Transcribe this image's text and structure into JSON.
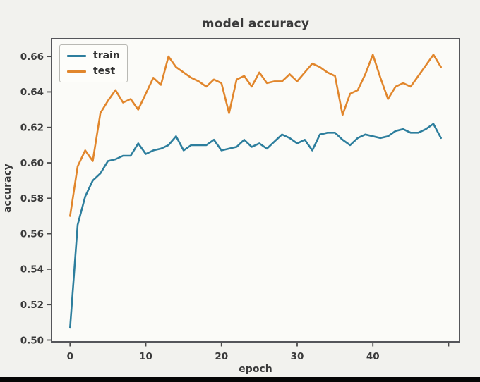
{
  "figure": {
    "title": "model accuracy",
    "x_axis_label": "epoch",
    "y_axis_label": "accuracy"
  },
  "chart_data": {
    "type": "line",
    "title": "model accuracy",
    "xlabel": "epoch",
    "ylabel": "accuracy",
    "grid": false,
    "legend_position": "upper left",
    "xlim": [
      -2.45,
      51.45
    ],
    "ylim": [
      0.499,
      0.67
    ],
    "xticks": [
      0,
      10,
      20,
      30,
      40,
      50
    ],
    "xtick_labels": [
      "0",
      "10",
      "20",
      "30",
      "40",
      ""
    ],
    "yticks": [
      0.5,
      0.52,
      0.54,
      0.56,
      0.58,
      0.6,
      0.62,
      0.64,
      0.66
    ],
    "ytick_labels": [
      "0.50",
      "0.52",
      "0.54",
      "0.56",
      "0.58",
      "0.60",
      "0.62",
      "0.64",
      "0.66"
    ],
    "x": [
      0,
      1,
      2,
      3,
      4,
      5,
      6,
      7,
      8,
      9,
      10,
      11,
      12,
      13,
      14,
      15,
      16,
      17,
      18,
      19,
      20,
      21,
      22,
      23,
      24,
      25,
      26,
      27,
      28,
      29,
      30,
      31,
      32,
      33,
      34,
      35,
      36,
      37,
      38,
      39,
      40,
      41,
      42,
      43,
      44,
      45,
      46,
      47,
      48,
      49
    ],
    "series": [
      {
        "name": "train",
        "color": "#2d7e9d",
        "values": [
          0.507,
          0.565,
          0.581,
          0.59,
          0.594,
          0.601,
          0.602,
          0.604,
          0.604,
          0.611,
          0.605,
          0.607,
          0.608,
          0.61,
          0.615,
          0.607,
          0.61,
          0.61,
          0.61,
          0.613,
          0.607,
          0.608,
          0.609,
          0.613,
          0.609,
          0.611,
          0.608,
          0.612,
          0.616,
          0.614,
          0.611,
          0.613,
          0.607,
          0.616,
          0.617,
          0.617,
          0.613,
          0.61,
          0.614,
          0.616,
          0.615,
          0.614,
          0.615,
          0.618,
          0.619,
          0.617,
          0.617,
          0.619,
          0.622,
          0.614
        ]
      },
      {
        "name": "test",
        "color": "#e1862c",
        "values": [
          0.57,
          0.598,
          0.607,
          0.601,
          0.628,
          0.635,
          0.641,
          0.634,
          0.636,
          0.63,
          0.639,
          0.648,
          0.644,
          0.66,
          0.654,
          0.651,
          0.648,
          0.646,
          0.643,
          0.647,
          0.645,
          0.628,
          0.647,
          0.649,
          0.643,
          0.651,
          0.645,
          0.646,
          0.646,
          0.65,
          0.646,
          0.651,
          0.656,
          0.654,
          0.651,
          0.649,
          0.627,
          0.639,
          0.641,
          0.65,
          0.661,
          0.648,
          0.636,
          0.643,
          0.645,
          0.643,
          0.649,
          0.655,
          0.661,
          0.654
        ]
      }
    ]
  },
  "style": {
    "plot_bg": "#fbfbf8",
    "outer_bg": "#f2f2ee",
    "spine_color": "#55565a",
    "tick_color": "#4a4a4a"
  }
}
